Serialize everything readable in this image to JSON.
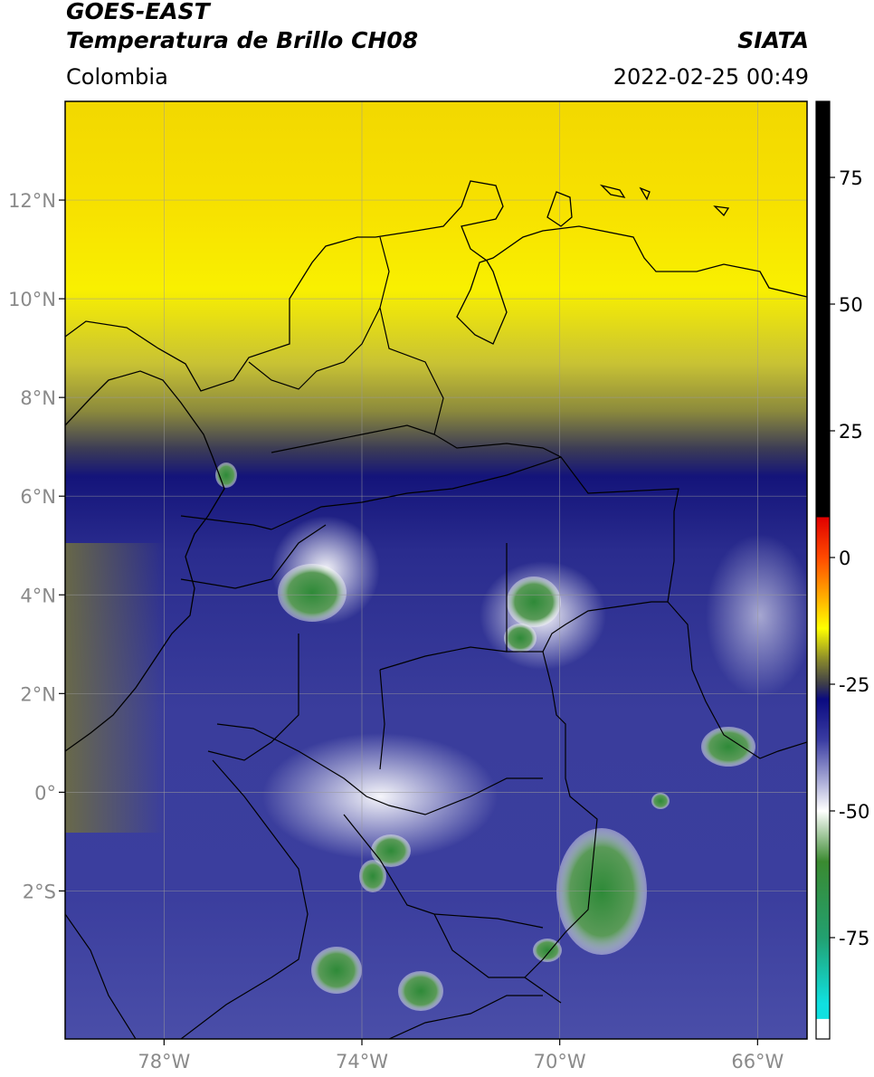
{
  "header": {
    "satellite": "GOES-EAST",
    "product": "Temperatura de Brillo CH08",
    "organization": "SIATA",
    "region": "Colombia",
    "timestamp": "2022-02-25 00:49"
  },
  "map": {
    "lon_range": [
      -80,
      -65
    ],
    "lat_range": [
      -5,
      14
    ],
    "lon_ticks": [
      {
        "value": -78,
        "label": "78°W"
      },
      {
        "value": -74,
        "label": "74°W"
      },
      {
        "value": -70,
        "label": "70°W"
      },
      {
        "value": -66,
        "label": "66°W"
      }
    ],
    "lat_ticks": [
      {
        "value": 12,
        "label": "12°N"
      },
      {
        "value": 10,
        "label": "10°N"
      },
      {
        "value": 8,
        "label": "8°N"
      },
      {
        "value": 6,
        "label": "6°N"
      },
      {
        "value": 4,
        "label": "4°N"
      },
      {
        "value": 2,
        "label": "2°N"
      },
      {
        "value": 0,
        "label": "0°"
      },
      {
        "value": -2,
        "label": "2°S"
      }
    ],
    "grid": true
  },
  "colorbar": {
    "range": [
      -95,
      90
    ],
    "ticks": [
      {
        "value": 75,
        "label": "75"
      },
      {
        "value": 50,
        "label": "50"
      },
      {
        "value": 25,
        "label": "25"
      },
      {
        "value": 0,
        "label": "0"
      },
      {
        "value": -25,
        "label": "-25"
      },
      {
        "value": -50,
        "label": "-50"
      },
      {
        "value": -75,
        "label": "-75"
      }
    ],
    "stops": [
      {
        "value": 90,
        "color": "#000000"
      },
      {
        "value": 8,
        "color": "#000000"
      },
      {
        "value": 7.9,
        "color": "#e00000"
      },
      {
        "value": 0,
        "color": "#ff4a00"
      },
      {
        "value": -8,
        "color": "#ffb000"
      },
      {
        "value": -14,
        "color": "#ffff00"
      },
      {
        "value": -20,
        "color": "#8c8c2a"
      },
      {
        "value": -25,
        "color": "#3c3c4a"
      },
      {
        "value": -28,
        "color": "#0a0a80"
      },
      {
        "value": -36,
        "color": "#3a3ca2"
      },
      {
        "value": -44,
        "color": "#a8aad6"
      },
      {
        "value": -50,
        "color": "#ffffff"
      },
      {
        "value": -60,
        "color": "#3a8a30"
      },
      {
        "value": -75,
        "color": "#22a070"
      },
      {
        "value": -88,
        "color": "#10e0e0"
      },
      {
        "value": -91,
        "color": "#10e0e0"
      },
      {
        "value": -91.1,
        "color": "#ffffff"
      },
      {
        "value": -95,
        "color": "#ffffff"
      }
    ]
  }
}
